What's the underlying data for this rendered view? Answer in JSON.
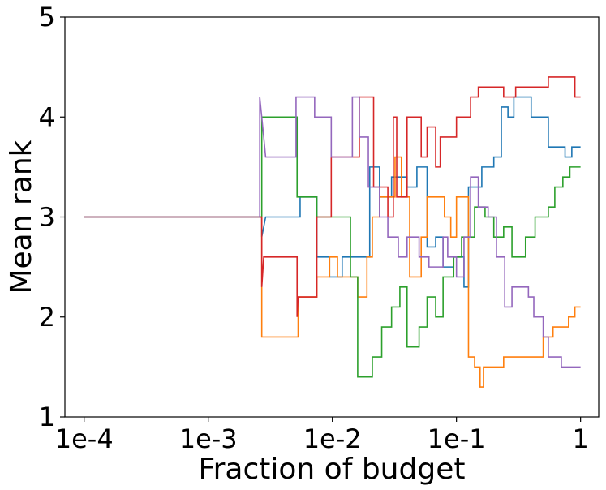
{
  "chart_data": {
    "type": "line",
    "title": "",
    "xlabel": "Fraction of budget",
    "ylabel": "Mean rank",
    "xscale": "log",
    "xlim": [
      7e-05,
      1.4
    ],
    "ylim": [
      1,
      5
    ],
    "x_ticks": [
      {
        "value": 0.0001,
        "label": "1e-4"
      },
      {
        "value": 0.001,
        "label": "1e-3"
      },
      {
        "value": 0.01,
        "label": "1e-2"
      },
      {
        "value": 0.1,
        "label": "1e-1"
      },
      {
        "value": 1,
        "label": "1"
      }
    ],
    "y_ticks": [
      {
        "value": 1,
        "label": "1"
      },
      {
        "value": 2,
        "label": "2"
      },
      {
        "value": 3,
        "label": "3"
      },
      {
        "value": 4,
        "label": "4"
      },
      {
        "value": 5,
        "label": "5"
      }
    ],
    "legend": false,
    "grid": false,
    "series": [
      {
        "name": "blue",
        "color": "#1f77b4",
        "points": [
          [
            0.0001,
            3
          ],
          [
            0.0027,
            3
          ],
          [
            0.0027,
            2.8
          ],
          [
            0.0029,
            3
          ],
          [
            0.0055,
            3
          ],
          [
            0.0055,
            3.2
          ],
          [
            0.0075,
            3.2
          ],
          [
            0.0075,
            2.6
          ],
          [
            0.0095,
            2.6
          ],
          [
            0.0095,
            2.4
          ],
          [
            0.012,
            2.4
          ],
          [
            0.012,
            2.6
          ],
          [
            0.02,
            2.6
          ],
          [
            0.02,
            3.5
          ],
          [
            0.024,
            3.5
          ],
          [
            0.024,
            3.2
          ],
          [
            0.03,
            3.2
          ],
          [
            0.03,
            3.4
          ],
          [
            0.04,
            3.4
          ],
          [
            0.04,
            3.3
          ],
          [
            0.048,
            3.3
          ],
          [
            0.048,
            3.5
          ],
          [
            0.058,
            3.5
          ],
          [
            0.058,
            2.7
          ],
          [
            0.068,
            2.7
          ],
          [
            0.068,
            2.8
          ],
          [
            0.078,
            2.8
          ],
          [
            0.078,
            2.5
          ],
          [
            0.095,
            2.5
          ],
          [
            0.095,
            2.6
          ],
          [
            0.115,
            2.6
          ],
          [
            0.115,
            2.3
          ],
          [
            0.125,
            2.3
          ],
          [
            0.125,
            3.3
          ],
          [
            0.16,
            3.3
          ],
          [
            0.16,
            3.5
          ],
          [
            0.2,
            3.5
          ],
          [
            0.2,
            3.6
          ],
          [
            0.23,
            3.6
          ],
          [
            0.23,
            4.1
          ],
          [
            0.26,
            4.1
          ],
          [
            0.26,
            4.0
          ],
          [
            0.29,
            4.0
          ],
          [
            0.29,
            4.2
          ],
          [
            0.4,
            4.2
          ],
          [
            0.4,
            4.0
          ],
          [
            0.55,
            4.0
          ],
          [
            0.55,
            3.7
          ],
          [
            0.75,
            3.7
          ],
          [
            0.75,
            3.6
          ],
          [
            0.85,
            3.6
          ],
          [
            0.85,
            3.7
          ],
          [
            1,
            3.7
          ]
        ]
      },
      {
        "name": "orange",
        "color": "#ff7f0e",
        "points": [
          [
            0.0001,
            3
          ],
          [
            0.0027,
            3
          ],
          [
            0.0027,
            1.8
          ],
          [
            0.0053,
            1.8
          ],
          [
            0.0053,
            2.2
          ],
          [
            0.0075,
            2.2
          ],
          [
            0.0075,
            2.4
          ],
          [
            0.0095,
            2.4
          ],
          [
            0.0095,
            2.6
          ],
          [
            0.011,
            2.6
          ],
          [
            0.011,
            2.4
          ],
          [
            0.016,
            2.4
          ],
          [
            0.016,
            2.2
          ],
          [
            0.019,
            2.2
          ],
          [
            0.019,
            2.6
          ],
          [
            0.021,
            2.6
          ],
          [
            0.021,
            3.0
          ],
          [
            0.024,
            3.0
          ],
          [
            0.024,
            3.2
          ],
          [
            0.032,
            3.2
          ],
          [
            0.032,
            3.6
          ],
          [
            0.036,
            3.6
          ],
          [
            0.036,
            3.2
          ],
          [
            0.042,
            3.2
          ],
          [
            0.042,
            2.4
          ],
          [
            0.052,
            2.4
          ],
          [
            0.052,
            2.8
          ],
          [
            0.058,
            2.8
          ],
          [
            0.058,
            3.2
          ],
          [
            0.08,
            3.2
          ],
          [
            0.08,
            3.0
          ],
          [
            0.09,
            3.0
          ],
          [
            0.09,
            2.8
          ],
          [
            0.1,
            2.8
          ],
          [
            0.1,
            3.2
          ],
          [
            0.125,
            3.2
          ],
          [
            0.125,
            1.6
          ],
          [
            0.14,
            1.6
          ],
          [
            0.14,
            1.5
          ],
          [
            0.155,
            1.5
          ],
          [
            0.155,
            1.3
          ],
          [
            0.165,
            1.3
          ],
          [
            0.165,
            1.5
          ],
          [
            0.24,
            1.5
          ],
          [
            0.24,
            1.6
          ],
          [
            0.5,
            1.6
          ],
          [
            0.5,
            1.8
          ],
          [
            0.6,
            1.8
          ],
          [
            0.6,
            1.9
          ],
          [
            0.8,
            1.9
          ],
          [
            0.8,
            2.0
          ],
          [
            0.9,
            2.0
          ],
          [
            0.9,
            2.1
          ],
          [
            1,
            2.1
          ]
        ]
      },
      {
        "name": "green",
        "color": "#2ca02c",
        "points": [
          [
            0.0001,
            3
          ],
          [
            0.0027,
            3
          ],
          [
            0.0027,
            4.0
          ],
          [
            0.0052,
            4.0
          ],
          [
            0.0052,
            3.2
          ],
          [
            0.0075,
            3.2
          ],
          [
            0.0075,
            3.0
          ],
          [
            0.014,
            3.0
          ],
          [
            0.014,
            2.4
          ],
          [
            0.016,
            2.4
          ],
          [
            0.016,
            1.4
          ],
          [
            0.021,
            1.4
          ],
          [
            0.021,
            1.6
          ],
          [
            0.025,
            1.6
          ],
          [
            0.025,
            1.9
          ],
          [
            0.03,
            1.9
          ],
          [
            0.03,
            2.1
          ],
          [
            0.035,
            2.1
          ],
          [
            0.035,
            2.3
          ],
          [
            0.04,
            2.3
          ],
          [
            0.04,
            1.7
          ],
          [
            0.05,
            1.7
          ],
          [
            0.05,
            1.9
          ],
          [
            0.058,
            1.9
          ],
          [
            0.058,
            2.2
          ],
          [
            0.068,
            2.2
          ],
          [
            0.068,
            2.0
          ],
          [
            0.078,
            2.0
          ],
          [
            0.078,
            2.4
          ],
          [
            0.095,
            2.4
          ],
          [
            0.095,
            2.6
          ],
          [
            0.11,
            2.6
          ],
          [
            0.11,
            2.8
          ],
          [
            0.14,
            2.8
          ],
          [
            0.14,
            3.1
          ],
          [
            0.17,
            3.1
          ],
          [
            0.17,
            3.0
          ],
          [
            0.2,
            3.0
          ],
          [
            0.2,
            2.8
          ],
          [
            0.24,
            2.8
          ],
          [
            0.24,
            2.9
          ],
          [
            0.28,
            2.9
          ],
          [
            0.28,
            2.6
          ],
          [
            0.36,
            2.6
          ],
          [
            0.36,
            2.8
          ],
          [
            0.43,
            2.8
          ],
          [
            0.43,
            3.0
          ],
          [
            0.55,
            3.0
          ],
          [
            0.55,
            3.1
          ],
          [
            0.62,
            3.1
          ],
          [
            0.62,
            3.3
          ],
          [
            0.72,
            3.3
          ],
          [
            0.72,
            3.4
          ],
          [
            0.82,
            3.4
          ],
          [
            0.82,
            3.5
          ],
          [
            1,
            3.5
          ]
        ]
      },
      {
        "name": "red",
        "color": "#d62728",
        "points": [
          [
            0.0001,
            3
          ],
          [
            0.0027,
            3
          ],
          [
            0.0027,
            2.3
          ],
          [
            0.0028,
            2.6
          ],
          [
            0.0052,
            2.6
          ],
          [
            0.0052,
            2.0
          ],
          [
            0.0053,
            2.2
          ],
          [
            0.0075,
            2.2
          ],
          [
            0.0075,
            3.0
          ],
          [
            0.0098,
            3.0
          ],
          [
            0.0098,
            3.6
          ],
          [
            0.0165,
            3.6
          ],
          [
            0.0165,
            4.2
          ],
          [
            0.0215,
            4.2
          ],
          [
            0.0215,
            3.3
          ],
          [
            0.028,
            3.3
          ],
          [
            0.028,
            3.0
          ],
          [
            0.031,
            3.0
          ],
          [
            0.031,
            4.0
          ],
          [
            0.033,
            4.0
          ],
          [
            0.033,
            3.2
          ],
          [
            0.04,
            3.2
          ],
          [
            0.04,
            4.0
          ],
          [
            0.052,
            4.0
          ],
          [
            0.052,
            3.6
          ],
          [
            0.058,
            3.6
          ],
          [
            0.058,
            3.9
          ],
          [
            0.068,
            3.9
          ],
          [
            0.068,
            3.5
          ],
          [
            0.074,
            3.5
          ],
          [
            0.074,
            3.8
          ],
          [
            0.1,
            3.8
          ],
          [
            0.1,
            4.0
          ],
          [
            0.13,
            4.0
          ],
          [
            0.13,
            4.2
          ],
          [
            0.15,
            4.2
          ],
          [
            0.15,
            4.3
          ],
          [
            0.24,
            4.3
          ],
          [
            0.24,
            4.2
          ],
          [
            0.3,
            4.2
          ],
          [
            0.3,
            4.3
          ],
          [
            0.55,
            4.3
          ],
          [
            0.55,
            4.4
          ],
          [
            0.9,
            4.4
          ],
          [
            0.9,
            4.2
          ],
          [
            1,
            4.2
          ]
        ]
      },
      {
        "name": "purple",
        "color": "#9467bd",
        "points": [
          [
            0.0001,
            3
          ],
          [
            0.0026,
            3
          ],
          [
            0.0026,
            4.2
          ],
          [
            0.0028,
            3.8
          ],
          [
            0.0029,
            3.6
          ],
          [
            0.0051,
            3.6
          ],
          [
            0.0051,
            4.2
          ],
          [
            0.0072,
            4.2
          ],
          [
            0.0072,
            4.0
          ],
          [
            0.0098,
            4.0
          ],
          [
            0.0098,
            3.6
          ],
          [
            0.0145,
            3.6
          ],
          [
            0.0145,
            4.2
          ],
          [
            0.0165,
            4.2
          ],
          [
            0.0165,
            3.8
          ],
          [
            0.0195,
            3.8
          ],
          [
            0.0195,
            3.3
          ],
          [
            0.024,
            3.3
          ],
          [
            0.024,
            3.0
          ],
          [
            0.028,
            3.0
          ],
          [
            0.028,
            2.8
          ],
          [
            0.034,
            2.8
          ],
          [
            0.034,
            2.6
          ],
          [
            0.04,
            2.6
          ],
          [
            0.04,
            2.8
          ],
          [
            0.05,
            2.8
          ],
          [
            0.05,
            2.6
          ],
          [
            0.06,
            2.6
          ],
          [
            0.06,
            2.5
          ],
          [
            0.078,
            2.5
          ],
          [
            0.078,
            2.8
          ],
          [
            0.085,
            2.8
          ],
          [
            0.085,
            2.6
          ],
          [
            0.1,
            2.6
          ],
          [
            0.1,
            2.4
          ],
          [
            0.115,
            2.4
          ],
          [
            0.115,
            2.8
          ],
          [
            0.13,
            2.8
          ],
          [
            0.13,
            3.4
          ],
          [
            0.15,
            3.4
          ],
          [
            0.15,
            3.1
          ],
          [
            0.18,
            3.1
          ],
          [
            0.18,
            3.0
          ],
          [
            0.21,
            3.0
          ],
          [
            0.21,
            2.6
          ],
          [
            0.245,
            2.6
          ],
          [
            0.245,
            2.1
          ],
          [
            0.28,
            2.1
          ],
          [
            0.28,
            2.3
          ],
          [
            0.38,
            2.3
          ],
          [
            0.38,
            2.2
          ],
          [
            0.42,
            2.2
          ],
          [
            0.42,
            2.0
          ],
          [
            0.5,
            2.0
          ],
          [
            0.5,
            1.8
          ],
          [
            0.55,
            1.8
          ],
          [
            0.55,
            1.6
          ],
          [
            0.7,
            1.6
          ],
          [
            0.7,
            1.5
          ],
          [
            1,
            1.5
          ]
        ]
      }
    ]
  }
}
